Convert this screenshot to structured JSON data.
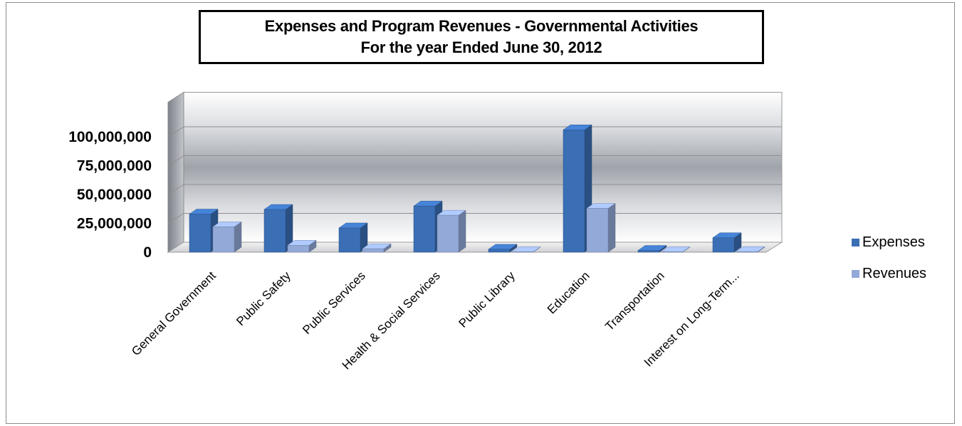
{
  "chart_data": {
    "type": "bar",
    "title": "Expenses and Program Revenues - Governmental Activities",
    "subtitle": "For the year Ended June 30, 2012",
    "categories": [
      "General Government",
      "Public Safety",
      "Public Services",
      "Health & Social Services",
      "Public Library",
      "Education",
      "Transportation",
      "Interest on Long-Term..."
    ],
    "series": [
      {
        "name": "Expenses",
        "color": "#3a6eb5",
        "values": [
          33000000,
          37000000,
          21000000,
          40000000,
          2500000,
          106000000,
          1500000,
          12500000
        ]
      },
      {
        "name": "Revenues",
        "color": "#93a9d8",
        "values": [
          22000000,
          6000000,
          3000000,
          32000000,
          300000,
          38000000,
          300000,
          500000
        ]
      }
    ],
    "y_ticks": [
      "0",
      "25,000,000",
      "50,000,000",
      "75,000,000",
      "100,000,000"
    ],
    "y_tick_values": [
      0,
      25000000,
      50000000,
      75000000,
      100000000
    ],
    "ylim": [
      0,
      125000000
    ],
    "xlabel": "",
    "ylabel": "",
    "legend_position": "right",
    "grid": true,
    "style": "3d-clustered-column"
  }
}
